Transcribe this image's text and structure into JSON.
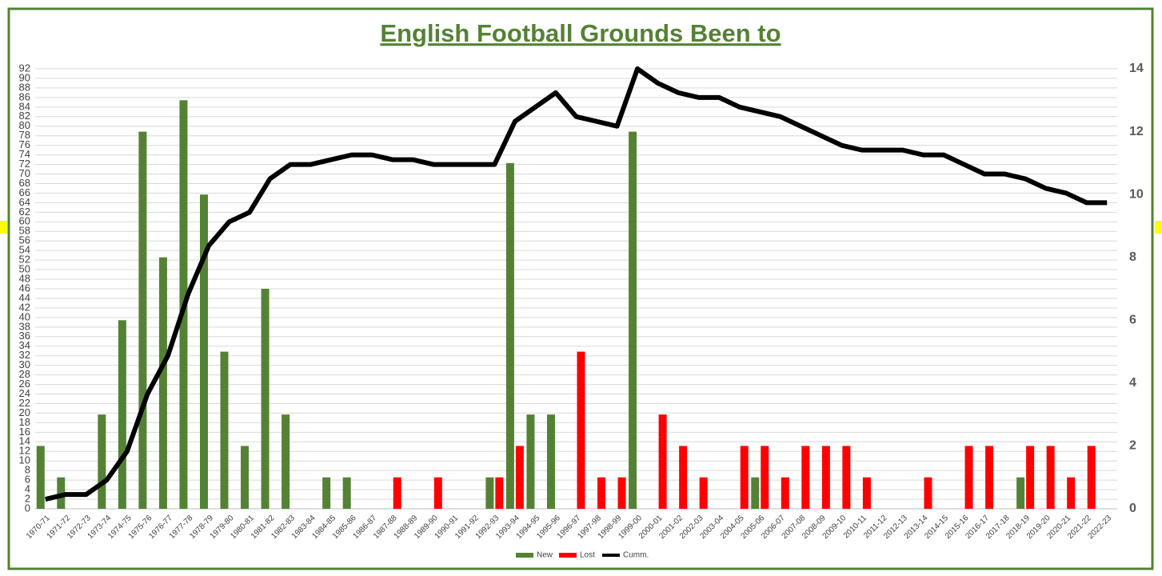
{
  "chart_data": {
    "type": "bar",
    "title": "English Football Grounds Been to",
    "categories": [
      "1970-71",
      "1971-72",
      "1972-73",
      "1973-74",
      "1974-75",
      "1975-76",
      "1976-77",
      "1977-78",
      "1978-79",
      "1979-80",
      "1980-81",
      "1981-82",
      "1982-83",
      "1983-84",
      "1984-85",
      "1985-86",
      "1986-87",
      "1987-88",
      "1988-89",
      "1989-90",
      "1990-91",
      "1991-92",
      "1992-93",
      "1993-94",
      "1994-95",
      "1995-96",
      "1996-97",
      "1997-98",
      "1998-99",
      "1999-00",
      "2000-01",
      "2001-02",
      "2002-03",
      "2003-04",
      "2004-05",
      "2005-06",
      "2006-07",
      "2007-08",
      "2008-09",
      "2009-10",
      "2010-11",
      "2011-12",
      "2012-13",
      "2013-14",
      "2014-15",
      "2015-16",
      "2016-17",
      "2017-18",
      "2018-19",
      "2019-20",
      "2020-21",
      "2021-22",
      "2022-23"
    ],
    "series": [
      {
        "name": "New",
        "color": "#548235",
        "type": "bar",
        "axis": "y2",
        "values": [
          2,
          1,
          0,
          3,
          6,
          12,
          8,
          13,
          10,
          5,
          2,
          7,
          3,
          0,
          1,
          1,
          0,
          0,
          0,
          0,
          0,
          0,
          1,
          11,
          3,
          3,
          0,
          0,
          0,
          12,
          0,
          0,
          0,
          0,
          0,
          1,
          0,
          0,
          0,
          0,
          0,
          0,
          0,
          0,
          0,
          0,
          0,
          0,
          1,
          0,
          0,
          0,
          0
        ]
      },
      {
        "name": "Lost",
        "color": "#ff0000",
        "type": "bar",
        "axis": "y2",
        "values": [
          0,
          0,
          0,
          0,
          0,
          0,
          0,
          0,
          0,
          0,
          0,
          0,
          0,
          0,
          0,
          0,
          0,
          1,
          0,
          1,
          0,
          0,
          1,
          2,
          0,
          0,
          5,
          1,
          1,
          0,
          3,
          2,
          1,
          0,
          2,
          2,
          1,
          2,
          2,
          2,
          1,
          0,
          0,
          1,
          0,
          2,
          2,
          0,
          2,
          2,
          1,
          2,
          0
        ]
      },
      {
        "name": "Cumm.",
        "color": "#000000",
        "type": "line",
        "values": [
          2,
          3,
          3,
          6,
          12,
          24,
          32,
          45,
          55,
          60,
          62,
          69,
          72,
          72,
          73,
          74,
          74,
          73,
          73,
          72,
          72,
          72,
          72,
          81,
          84,
          87,
          82,
          81,
          80,
          92,
          89,
          87,
          86,
          86,
          84,
          83,
          82,
          80,
          78,
          76,
          75,
          75,
          75,
          74,
          74,
          72,
          70,
          70,
          69,
          67,
          66,
          64,
          64
        ]
      }
    ],
    "ylim": [
      0,
      92
    ],
    "yticks": [
      0,
      2,
      4,
      6,
      8,
      10,
      12,
      14,
      16,
      18,
      20,
      22,
      24,
      26,
      28,
      30,
      32,
      34,
      36,
      38,
      40,
      42,
      44,
      46,
      48,
      50,
      52,
      54,
      56,
      58,
      60,
      62,
      64,
      66,
      68,
      70,
      72,
      74,
      76,
      78,
      80,
      82,
      84,
      86,
      88,
      90,
      92
    ],
    "y2lim": [
      0,
      14
    ],
    "y2ticks": [
      0,
      2,
      4,
      6,
      8,
      10,
      12,
      14
    ],
    "grid": true,
    "legend": "bottom"
  }
}
